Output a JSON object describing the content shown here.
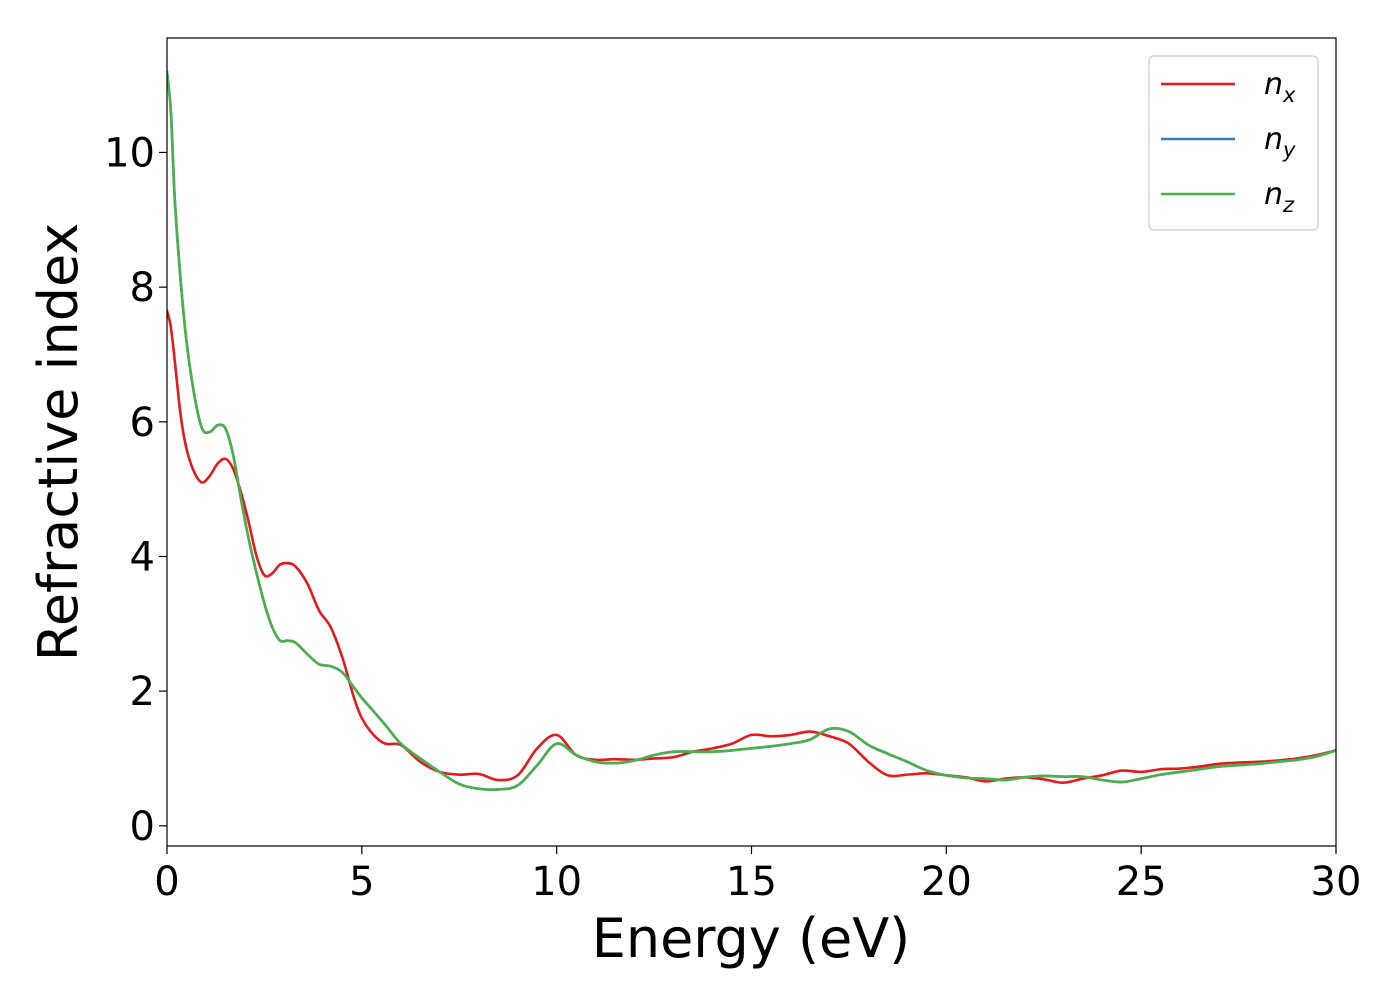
{
  "chart_data": {
    "type": "line",
    "title": "",
    "xlabel": "Energy (eV)",
    "ylabel": "Refractive index",
    "xlim": [
      0,
      30
    ],
    "ylim": [
      -0.3,
      11.7
    ],
    "xticks": [
      0,
      5,
      10,
      15,
      20,
      25,
      30
    ],
    "yticks": [
      0,
      2,
      4,
      6,
      8,
      10
    ],
    "grid": false,
    "legend_position": "top-right",
    "series": [
      {
        "name": "n",
        "subscript": "x",
        "color": "#e41a1c",
        "x": [
          0,
          0.1,
          0.2,
          0.35,
          0.5,
          0.7,
          0.9,
          1.1,
          1.3,
          1.5,
          1.7,
          1.9,
          2.1,
          2.3,
          2.5,
          2.7,
          2.9,
          3.1,
          3.3,
          3.6,
          3.9,
          4.2,
          4.5,
          4.8,
          5.0,
          5.3,
          5.6,
          6.0,
          6.5,
          7.0,
          7.5,
          8.0,
          8.5,
          9.0,
          9.5,
          10.0,
          10.5,
          11.0,
          11.5,
          12.0,
          12.5,
          13.0,
          13.5,
          14.0,
          14.5,
          15.0,
          15.5,
          16.0,
          16.5,
          17.0,
          17.5,
          18.0,
          18.5,
          19.0,
          19.5,
          20.0,
          20.5,
          21.0,
          21.5,
          22.0,
          22.5,
          23.0,
          23.5,
          24.0,
          24.5,
          25.0,
          25.5,
          26.0,
          26.5,
          27.0,
          27.5,
          28.0,
          28.5,
          29.0,
          29.5,
          30.0
        ],
        "y": [
          7.65,
          7.4,
          6.9,
          6.1,
          5.6,
          5.25,
          5.1,
          5.2,
          5.38,
          5.45,
          5.3,
          4.95,
          4.5,
          4.0,
          3.72,
          3.75,
          3.88,
          3.9,
          3.85,
          3.6,
          3.2,
          2.95,
          2.5,
          1.9,
          1.6,
          1.35,
          1.22,
          1.2,
          0.95,
          0.8,
          0.76,
          0.77,
          0.68,
          0.75,
          1.15,
          1.35,
          1.05,
          0.98,
          0.99,
          0.98,
          1.0,
          1.02,
          1.1,
          1.15,
          1.22,
          1.35,
          1.33,
          1.35,
          1.4,
          1.33,
          1.22,
          0.95,
          0.75,
          0.76,
          0.78,
          0.75,
          0.72,
          0.66,
          0.7,
          0.72,
          0.69,
          0.64,
          0.7,
          0.75,
          0.82,
          0.8,
          0.84,
          0.85,
          0.88,
          0.92,
          0.94,
          0.95,
          0.97,
          1.0,
          1.05,
          1.12
        ]
      },
      {
        "name": "n",
        "subscript": "y",
        "color": "#377eb8",
        "x": [
          0,
          0.1,
          0.2,
          0.35,
          0.5,
          0.7,
          0.9,
          1.1,
          1.3,
          1.5,
          1.7,
          1.9,
          2.1,
          2.3,
          2.5,
          2.7,
          2.9,
          3.1,
          3.3,
          3.6,
          3.9,
          4.2,
          4.5,
          4.8,
          5.0,
          5.3,
          5.6,
          6.0,
          6.5,
          7.0,
          7.5,
          8.0,
          8.5,
          9.0,
          9.5,
          10.0,
          10.5,
          11.0,
          11.5,
          12.0,
          12.5,
          13.0,
          13.5,
          14.0,
          14.5,
          15.0,
          15.5,
          16.0,
          16.5,
          17.0,
          17.5,
          18.0,
          18.5,
          19.0,
          19.5,
          20.0,
          20.5,
          21.0,
          21.5,
          22.0,
          22.5,
          23.0,
          23.5,
          24.0,
          24.5,
          25.0,
          25.5,
          26.0,
          26.5,
          27.0,
          27.5,
          28.0,
          28.5,
          29.0,
          29.5,
          30.0
        ],
        "y": [
          11.2,
          10.6,
          9.3,
          8.1,
          7.2,
          6.4,
          5.9,
          5.85,
          5.95,
          5.9,
          5.5,
          4.85,
          4.25,
          3.75,
          3.3,
          2.95,
          2.75,
          2.75,
          2.72,
          2.55,
          2.4,
          2.37,
          2.28,
          2.05,
          1.9,
          1.7,
          1.5,
          1.22,
          1.0,
          0.8,
          0.62,
          0.55,
          0.54,
          0.6,
          0.9,
          1.22,
          1.05,
          0.95,
          0.93,
          0.97,
          1.05,
          1.1,
          1.1,
          1.1,
          1.12,
          1.15,
          1.18,
          1.22,
          1.28,
          1.44,
          1.4,
          1.2,
          1.07,
          0.95,
          0.82,
          0.75,
          0.71,
          0.7,
          0.68,
          0.72,
          0.74,
          0.73,
          0.73,
          0.68,
          0.65,
          0.7,
          0.76,
          0.8,
          0.84,
          0.88,
          0.9,
          0.92,
          0.95,
          0.98,
          1.03,
          1.12
        ]
      },
      {
        "name": "n",
        "subscript": "z",
        "color": "#4daf4a",
        "x": [
          0,
          0.1,
          0.2,
          0.35,
          0.5,
          0.7,
          0.9,
          1.1,
          1.3,
          1.5,
          1.7,
          1.9,
          2.1,
          2.3,
          2.5,
          2.7,
          2.9,
          3.1,
          3.3,
          3.6,
          3.9,
          4.2,
          4.5,
          4.8,
          5.0,
          5.3,
          5.6,
          6.0,
          6.5,
          7.0,
          7.5,
          8.0,
          8.5,
          9.0,
          9.5,
          10.0,
          10.5,
          11.0,
          11.5,
          12.0,
          12.5,
          13.0,
          13.5,
          14.0,
          14.5,
          15.0,
          15.5,
          16.0,
          16.5,
          17.0,
          17.5,
          18.0,
          18.5,
          19.0,
          19.5,
          20.0,
          20.5,
          21.0,
          21.5,
          22.0,
          22.5,
          23.0,
          23.5,
          24.0,
          24.5,
          25.0,
          25.5,
          26.0,
          26.5,
          27.0,
          27.5,
          28.0,
          28.5,
          29.0,
          29.5,
          30.0
        ],
        "y": [
          11.2,
          10.6,
          9.3,
          8.1,
          7.2,
          6.4,
          5.9,
          5.85,
          5.95,
          5.9,
          5.5,
          4.85,
          4.25,
          3.75,
          3.3,
          2.95,
          2.75,
          2.75,
          2.72,
          2.55,
          2.4,
          2.37,
          2.28,
          2.05,
          1.9,
          1.7,
          1.5,
          1.22,
          1.0,
          0.8,
          0.62,
          0.55,
          0.54,
          0.6,
          0.9,
          1.22,
          1.05,
          0.95,
          0.93,
          0.97,
          1.05,
          1.1,
          1.1,
          1.1,
          1.12,
          1.15,
          1.18,
          1.22,
          1.28,
          1.44,
          1.4,
          1.2,
          1.07,
          0.95,
          0.82,
          0.75,
          0.71,
          0.7,
          0.68,
          0.72,
          0.74,
          0.73,
          0.73,
          0.68,
          0.65,
          0.7,
          0.76,
          0.8,
          0.84,
          0.88,
          0.9,
          0.92,
          0.95,
          0.98,
          1.03,
          1.12
        ]
      }
    ]
  }
}
